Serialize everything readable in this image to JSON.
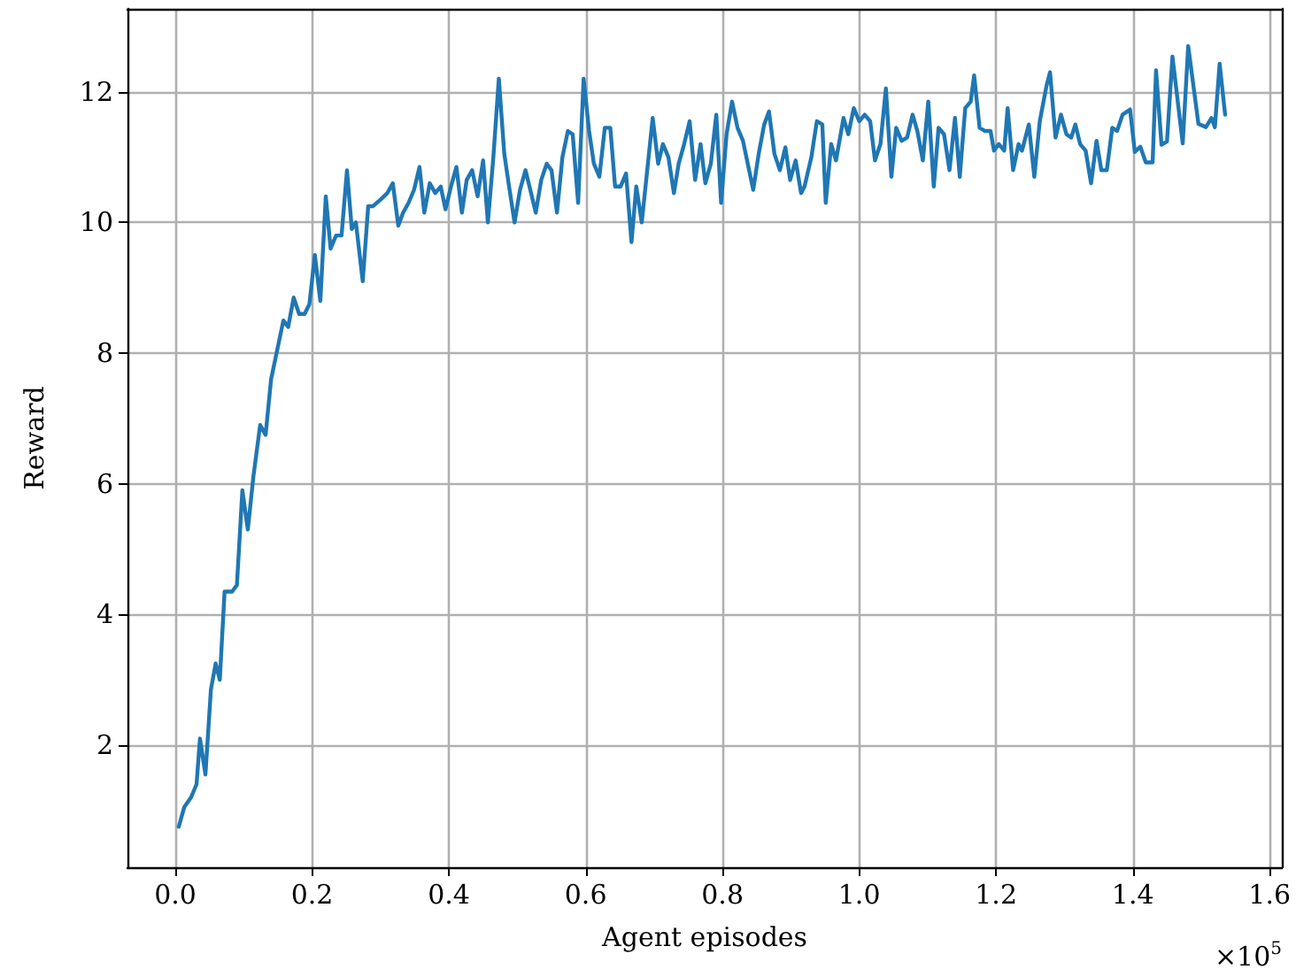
{
  "chart_data": {
    "type": "line",
    "xlabel": "Agent episodes",
    "ylabel": "Reward",
    "annotations": [
      "×10$^{5}$"
    ],
    "xlim": [
      -0.07,
      1.618
    ],
    "ylim": [
      0.13,
      13.27
    ],
    "xticks": [
      {
        "value": 0,
        "label": "0.0"
      },
      {
        "value": 0.2,
        "label": "0.2"
      },
      {
        "value": 0.4,
        "label": "0.4"
      },
      {
        "value": 0.6,
        "label": "0.6"
      },
      {
        "value": 0.8,
        "label": "0.8"
      },
      {
        "value": 1.0,
        "label": "1.0"
      },
      {
        "value": 1.2,
        "label": "1.2"
      },
      {
        "value": 1.4,
        "label": "1.4"
      },
      {
        "value": 1.6,
        "label": "1.6"
      }
    ],
    "yticks": [
      2,
      4,
      6,
      8,
      10,
      12
    ],
    "grid": true,
    "marker": "none",
    "line_style": "solid",
    "series": [
      {
        "color": "#1f77b4",
        "x": [
          0.005,
          0.013,
          0.023,
          0.031,
          0.036,
          0.044,
          0.052,
          0.059,
          0.065,
          0.072,
          0.083,
          0.09,
          0.098,
          0.106,
          0.114,
          0.124,
          0.132,
          0.14,
          0.15,
          0.158,
          0.165,
          0.173,
          0.181,
          0.189,
          0.196,
          0.204,
          0.212,
          0.22,
          0.227,
          0.235,
          0.243,
          0.251,
          0.258,
          0.264,
          0.274,
          0.282,
          0.289,
          0.3,
          0.31,
          0.318,
          0.326,
          0.333,
          0.341,
          0.349,
          0.357,
          0.364,
          0.372,
          0.38,
          0.388,
          0.395,
          0.403,
          0.411,
          0.419,
          0.426,
          0.434,
          0.442,
          0.45,
          0.457,
          0.465,
          0.473,
          0.481,
          0.488,
          0.496,
          0.504,
          0.512,
          0.519,
          0.527,
          0.535,
          0.543,
          0.55,
          0.558,
          0.566,
          0.574,
          0.581,
          0.589,
          0.597,
          0.605,
          0.612,
          0.62,
          0.628,
          0.636,
          0.643,
          0.651,
          0.659,
          0.667,
          0.674,
          0.682,
          0.69,
          0.698,
          0.706,
          0.713,
          0.721,
          0.729,
          0.736,
          0.744,
          0.752,
          0.76,
          0.768,
          0.775,
          0.783,
          0.791,
          0.798,
          0.806,
          0.814,
          0.822,
          0.83,
          0.837,
          0.845,
          0.853,
          0.861,
          0.868,
          0.876,
          0.884,
          0.892,
          0.899,
          0.907,
          0.915,
          0.92,
          0.93,
          0.938,
          0.946,
          0.951,
          0.959,
          0.966,
          0.977,
          0.984,
          0.992,
          1.0,
          1.008,
          1.016,
          1.023,
          1.031,
          1.039,
          1.047,
          1.054,
          1.062,
          1.07,
          1.078,
          1.085,
          1.093,
          1.101,
          1.109,
          1.116,
          1.124,
          1.132,
          1.14,
          1.147,
          1.155,
          1.163,
          1.168,
          1.176,
          1.184,
          1.192,
          1.197,
          1.204,
          1.212,
          1.217,
          1.225,
          1.233,
          1.238,
          1.248,
          1.256,
          1.264,
          1.274,
          1.279,
          1.287,
          1.295,
          1.303,
          1.31,
          1.316,
          1.323,
          1.331,
          1.339,
          1.347,
          1.354,
          1.362,
          1.37,
          1.377,
          1.385,
          1.396,
          1.403,
          1.411,
          1.419,
          1.429,
          1.434,
          1.442,
          1.45,
          1.458,
          1.473,
          1.481,
          1.496,
          1.507,
          1.515,
          1.52,
          1.527,
          1.535
        ],
        "values": [
          0.75,
          1.05,
          1.2,
          1.4,
          2.1,
          1.55,
          2.85,
          3.25,
          3.0,
          4.35,
          4.35,
          4.45,
          5.9,
          5.3,
          6.1,
          6.9,
          6.75,
          7.6,
          8.1,
          8.5,
          8.4,
          8.85,
          8.6,
          8.6,
          8.75,
          9.5,
          8.8,
          10.4,
          9.6,
          9.8,
          9.8,
          10.8,
          9.9,
          10.0,
          9.1,
          10.25,
          10.25,
          10.35,
          10.45,
          10.6,
          9.95,
          10.15,
          10.3,
          10.5,
          10.85,
          10.15,
          10.6,
          10.45,
          10.55,
          10.2,
          10.55,
          10.85,
          10.15,
          10.65,
          10.8,
          10.4,
          10.95,
          10.0,
          11.0,
          12.2,
          11.05,
          10.55,
          10.0,
          10.5,
          10.8,
          10.5,
          10.15,
          10.65,
          10.9,
          10.8,
          10.15,
          11.0,
          11.4,
          11.35,
          10.3,
          12.2,
          11.4,
          10.9,
          10.7,
          11.45,
          11.45,
          10.55,
          10.55,
          10.75,
          9.7,
          10.55,
          10.0,
          10.8,
          11.6,
          10.9,
          11.2,
          11.0,
          10.45,
          10.9,
          11.2,
          11.55,
          10.65,
          11.2,
          10.6,
          10.9,
          11.65,
          10.3,
          11.35,
          11.85,
          11.45,
          11.25,
          10.9,
          10.5,
          11.05,
          11.5,
          11.7,
          11.05,
          10.8,
          11.15,
          10.65,
          10.95,
          10.45,
          10.55,
          11.0,
          11.55,
          11.5,
          10.3,
          11.2,
          10.95,
          11.6,
          11.35,
          11.75,
          11.55,
          11.65,
          11.55,
          10.95,
          11.2,
          12.05,
          10.7,
          11.45,
          11.25,
          11.3,
          11.65,
          11.4,
          10.95,
          11.85,
          10.55,
          11.45,
          11.35,
          10.8,
          11.6,
          10.7,
          11.75,
          11.85,
          12.25,
          11.45,
          11.4,
          11.4,
          11.1,
          11.2,
          11.1,
          11.75,
          10.8,
          11.2,
          11.1,
          11.5,
          10.7,
          11.55,
          12.1,
          12.3,
          11.3,
          11.65,
          11.35,
          11.3,
          11.5,
          11.2,
          11.1,
          10.6,
          11.25,
          10.8,
          10.8,
          11.45,
          11.4,
          11.65,
          11.73,
          11.08,
          11.16,
          10.92,
          10.92,
          12.33,
          11.19,
          11.24,
          12.54,
          11.21,
          12.7,
          11.51,
          11.46,
          11.6,
          11.46,
          12.43,
          11.65
        ]
      }
    ]
  }
}
